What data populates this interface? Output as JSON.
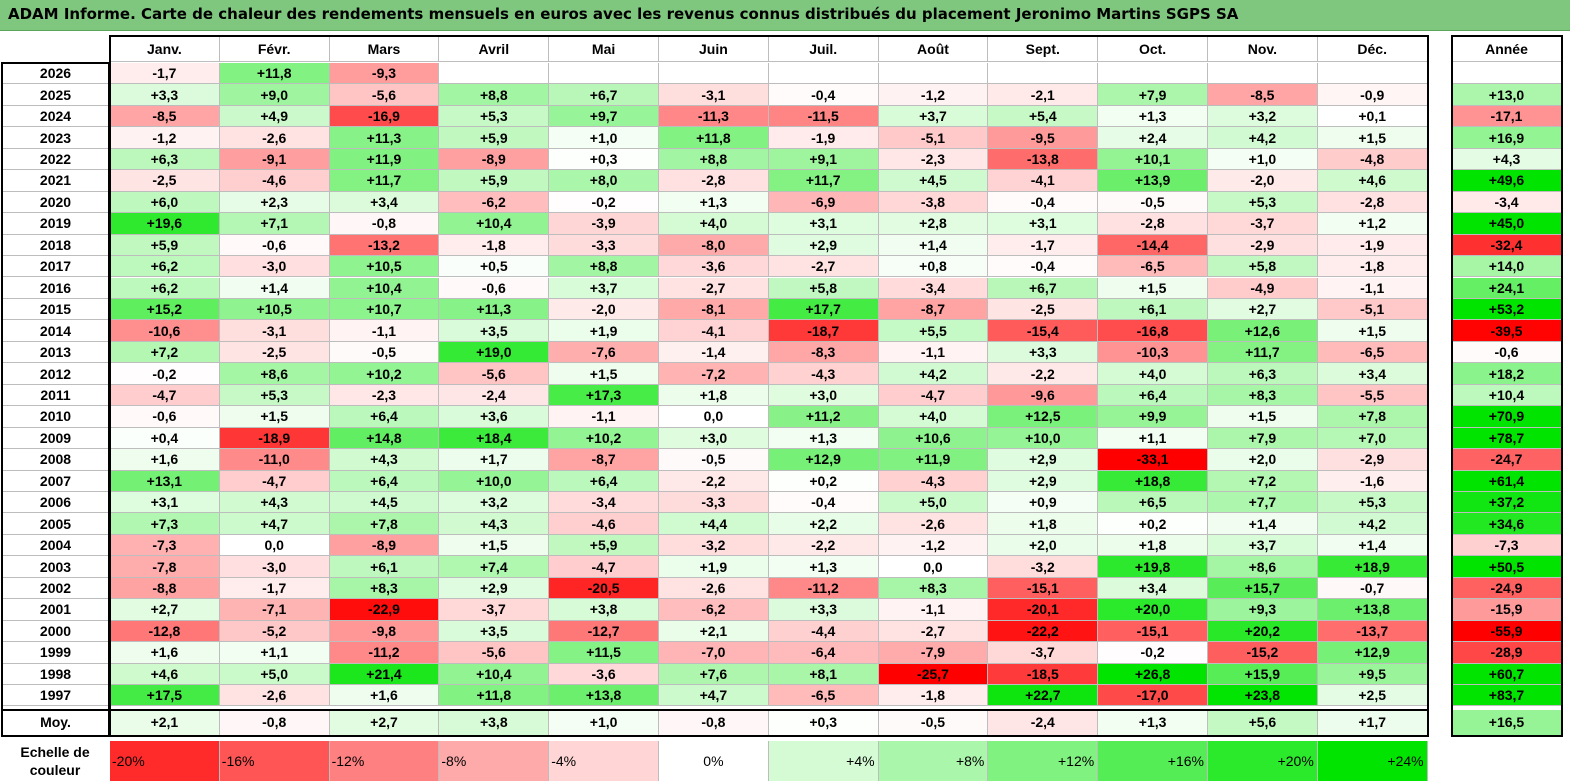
{
  "title": "ADAM Informe. Carte de chaleur des rendements mensuels en euros avec les revenus connus distribués du placement Jeronimo Martins SGPS SA",
  "chart_data": {
    "type": "heatmap",
    "columns": [
      "Janv.",
      "Févr.",
      "Mars",
      "Avril",
      "Mai",
      "Juin",
      "Juil.",
      "Août",
      "Sept.",
      "Oct.",
      "Nov.",
      "Déc."
    ],
    "year_column_label": "Année",
    "average_row_label": "Moy.",
    "rows": [
      {
        "year": "2026",
        "months": [
          "-1,7",
          "+11,8",
          "-9,3",
          "",
          "",
          "",
          "",
          "",
          "",
          "",
          "",
          ""
        ],
        "annual": ""
      },
      {
        "year": "2025",
        "months": [
          "+3,3",
          "+9,0",
          "-5,6",
          "+8,8",
          "+6,7",
          "-3,1",
          "-0,4",
          "-1,2",
          "-2,1",
          "+7,9",
          "-8,5",
          "-0,9"
        ],
        "annual": "+13,0"
      },
      {
        "year": "2024",
        "months": [
          "-8,5",
          "+4,9",
          "-16,9",
          "+5,3",
          "+9,7",
          "-11,3",
          "-11,5",
          "+3,7",
          "+5,4",
          "+1,3",
          "+3,2",
          "+0,1"
        ],
        "annual": "-17,1"
      },
      {
        "year": "2023",
        "months": [
          "-1,2",
          "-2,6",
          "+11,3",
          "+5,9",
          "+1,0",
          "+11,8",
          "-1,9",
          "-5,1",
          "-9,5",
          "+2,4",
          "+4,2",
          "+1,5"
        ],
        "annual": "+16,9"
      },
      {
        "year": "2022",
        "months": [
          "+6,3",
          "-9,1",
          "+11,9",
          "-8,9",
          "+0,3",
          "+8,8",
          "+9,1",
          "-2,3",
          "-13,8",
          "+10,1",
          "+1,0",
          "-4,8"
        ],
        "annual": "+4,3"
      },
      {
        "year": "2021",
        "months": [
          "-2,5",
          "-4,6",
          "+11,7",
          "+5,9",
          "+8,0",
          "-2,8",
          "+11,7",
          "+4,5",
          "-4,1",
          "+13,9",
          "-2,0",
          "+4,6"
        ],
        "annual": "+49,6"
      },
      {
        "year": "2020",
        "months": [
          "+6,0",
          "+2,3",
          "+3,4",
          "-6,2",
          "-0,2",
          "+1,3",
          "-6,9",
          "-3,8",
          "-0,4",
          "-0,5",
          "+5,3",
          "-2,8"
        ],
        "annual": "-3,4"
      },
      {
        "year": "2019",
        "months": [
          "+19,6",
          "+7,1",
          "-0,8",
          "+10,4",
          "-3,9",
          "+4,0",
          "+3,1",
          "+2,8",
          "+3,1",
          "-2,8",
          "-3,7",
          "+1,2"
        ],
        "annual": "+45,0"
      },
      {
        "year": "2018",
        "months": [
          "+5,9",
          "-0,6",
          "-13,2",
          "-1,8",
          "-3,3",
          "-8,0",
          "+2,9",
          "+1,4",
          "-1,7",
          "-14,4",
          "-2,9",
          "-1,9"
        ],
        "annual": "-32,4"
      },
      {
        "year": "2017",
        "months": [
          "+6,2",
          "-3,0",
          "+10,5",
          "+0,5",
          "+8,8",
          "-3,6",
          "-2,7",
          "+0,8",
          "-0,4",
          "-6,5",
          "+5,8",
          "-1,8"
        ],
        "annual": "+14,0"
      },
      {
        "year": "2016",
        "months": [
          "+6,2",
          "+1,4",
          "+10,4",
          "-0,6",
          "+3,7",
          "-2,7",
          "+5,8",
          "-3,4",
          "+6,7",
          "+1,5",
          "-4,9",
          "-1,1"
        ],
        "annual": "+24,1"
      },
      {
        "year": "2015",
        "months": [
          "+15,2",
          "+10,5",
          "+10,7",
          "+11,3",
          "-2,0",
          "-8,1",
          "+17,7",
          "-8,7",
          "-2,5",
          "+6,1",
          "+2,7",
          "-5,1"
        ],
        "annual": "+53,2"
      },
      {
        "year": "2014",
        "months": [
          "-10,6",
          "-3,1",
          "-1,1",
          "+3,5",
          "+1,9",
          "-4,1",
          "-18,7",
          "+5,5",
          "-15,4",
          "-16,8",
          "+12,6",
          "+1,5"
        ],
        "annual": "-39,5"
      },
      {
        "year": "2013",
        "months": [
          "+7,2",
          "-2,5",
          "-0,5",
          "+19,0",
          "-7,6",
          "-1,4",
          "-8,3",
          "-1,1",
          "+3,3",
          "-10,3",
          "+11,7",
          "-6,5"
        ],
        "annual": "-0,6"
      },
      {
        "year": "2012",
        "months": [
          "-0,2",
          "+8,6",
          "+10,2",
          "-5,6",
          "+1,5",
          "-7,2",
          "-4,3",
          "+4,2",
          "-2,2",
          "+4,0",
          "+6,3",
          "+3,4"
        ],
        "annual": "+18,2"
      },
      {
        "year": "2011",
        "months": [
          "-4,7",
          "+5,3",
          "-2,3",
          "-2,4",
          "+17,3",
          "+1,8",
          "+3,0",
          "-4,7",
          "-9,6",
          "+6,4",
          "+8,3",
          "-5,5"
        ],
        "annual": "+10,4"
      },
      {
        "year": "2010",
        "months": [
          "-0,6",
          "+1,5",
          "+6,4",
          "+3,6",
          "-1,1",
          "0,0",
          "+11,2",
          "+4,0",
          "+12,5",
          "+9,9",
          "+1,5",
          "+7,8"
        ],
        "annual": "+70,9"
      },
      {
        "year": "2009",
        "months": [
          "+0,4",
          "-18,9",
          "+14,8",
          "+18,4",
          "+10,2",
          "+3,0",
          "+1,3",
          "+10,6",
          "+10,0",
          "+1,1",
          "+7,9",
          "+7,0"
        ],
        "annual": "+78,7"
      },
      {
        "year": "2008",
        "months": [
          "+1,6",
          "-11,0",
          "+4,3",
          "+1,7",
          "-8,7",
          "-0,5",
          "+12,9",
          "+11,9",
          "+2,9",
          "-33,1",
          "+2,0",
          "-2,9"
        ],
        "annual": "-24,7"
      },
      {
        "year": "2007",
        "months": [
          "+13,1",
          "-4,7",
          "+6,4",
          "+10,0",
          "+6,4",
          "-2,2",
          "+0,2",
          "-4,3",
          "+2,9",
          "+18,8",
          "+7,2",
          "-1,6"
        ],
        "annual": "+61,4"
      },
      {
        "year": "2006",
        "months": [
          "+3,1",
          "+4,3",
          "+4,5",
          "+3,2",
          "-3,4",
          "-3,3",
          "-0,4",
          "+5,0",
          "+0,9",
          "+6,5",
          "+7,7",
          "+5,3"
        ],
        "annual": "+37,2"
      },
      {
        "year": "2005",
        "months": [
          "+7,3",
          "+4,7",
          "+7,8",
          "+4,3",
          "-4,6",
          "+4,4",
          "+2,2",
          "-2,6",
          "+1,8",
          "+0,2",
          "+1,4",
          "+4,2"
        ],
        "annual": "+34,6"
      },
      {
        "year": "2004",
        "months": [
          "-7,3",
          "0,0",
          "-8,9",
          "+1,5",
          "+5,9",
          "-3,2",
          "-2,2",
          "-1,2",
          "+2,0",
          "+1,8",
          "+3,7",
          "+1,4"
        ],
        "annual": "-7,3"
      },
      {
        "year": "2003",
        "months": [
          "-7,8",
          "-3,0",
          "+6,1",
          "+7,4",
          "-4,7",
          "+1,9",
          "+1,3",
          "0,0",
          "-3,2",
          "+19,8",
          "+8,6",
          "+18,9"
        ],
        "annual": "+50,5"
      },
      {
        "year": "2002",
        "months": [
          "-8,8",
          "-1,7",
          "+8,3",
          "+2,9",
          "-20,5",
          "-2,6",
          "-11,2",
          "+8,3",
          "-15,1",
          "+3,4",
          "+15,7",
          "-0,7"
        ],
        "annual": "-24,9"
      },
      {
        "year": "2001",
        "months": [
          "+2,7",
          "-7,1",
          "-22,9",
          "-3,7",
          "+3,8",
          "-6,2",
          "+3,3",
          "-1,1",
          "-20,1",
          "+20,0",
          "+9,3",
          "+13,8"
        ],
        "annual": "-15,9"
      },
      {
        "year": "2000",
        "months": [
          "-12,8",
          "-5,2",
          "-9,8",
          "+3,5",
          "-12,7",
          "+2,1",
          "-4,4",
          "-2,7",
          "-22,2",
          "-15,1",
          "+20,2",
          "-13,7"
        ],
        "annual": "-55,9"
      },
      {
        "year": "1999",
        "months": [
          "+1,6",
          "+1,1",
          "-11,2",
          "-5,6",
          "+11,5",
          "-7,0",
          "-6,4",
          "-7,9",
          "-3,7",
          "-0,2",
          "-15,2",
          "+12,9"
        ],
        "annual": "-28,9"
      },
      {
        "year": "1998",
        "months": [
          "+4,6",
          "+5,0",
          "+21,4",
          "+10,4",
          "-3,6",
          "+7,6",
          "+8,1",
          "-25,7",
          "-18,5",
          "+26,8",
          "+15,9",
          "+9,5"
        ],
        "annual": "+60,7"
      },
      {
        "year": "1997",
        "months": [
          "+17,5",
          "-2,6",
          "+1,6",
          "+11,8",
          "+13,8",
          "+4,7",
          "-6,5",
          "-1,8",
          "+22,7",
          "-17,0",
          "+23,8",
          "+2,5"
        ],
        "annual": "+83,7"
      }
    ],
    "average": {
      "months": [
        "+2,1",
        "-0,8",
        "+2,7",
        "+3,8",
        "+1,0",
        "-0,8",
        "+0,3",
        "-0,5",
        "-2,4",
        "+1,3",
        "+5,6",
        "+1,7"
      ],
      "annual": "+16,5"
    },
    "color_scale": {
      "label": "Echelle de couleur",
      "stops": [
        "-20%",
        "-16%",
        "-12%",
        "-8%",
        "-4%",
        "0%",
        "+4%",
        "+8%",
        "+12%",
        "+16%",
        "+20%",
        "+24%"
      ]
    },
    "colors": {
      "negative_max": "#ff0000",
      "neutral": "#ffffff",
      "positive_max": "#00e400",
      "title_bg": "#7fc77f"
    }
  }
}
